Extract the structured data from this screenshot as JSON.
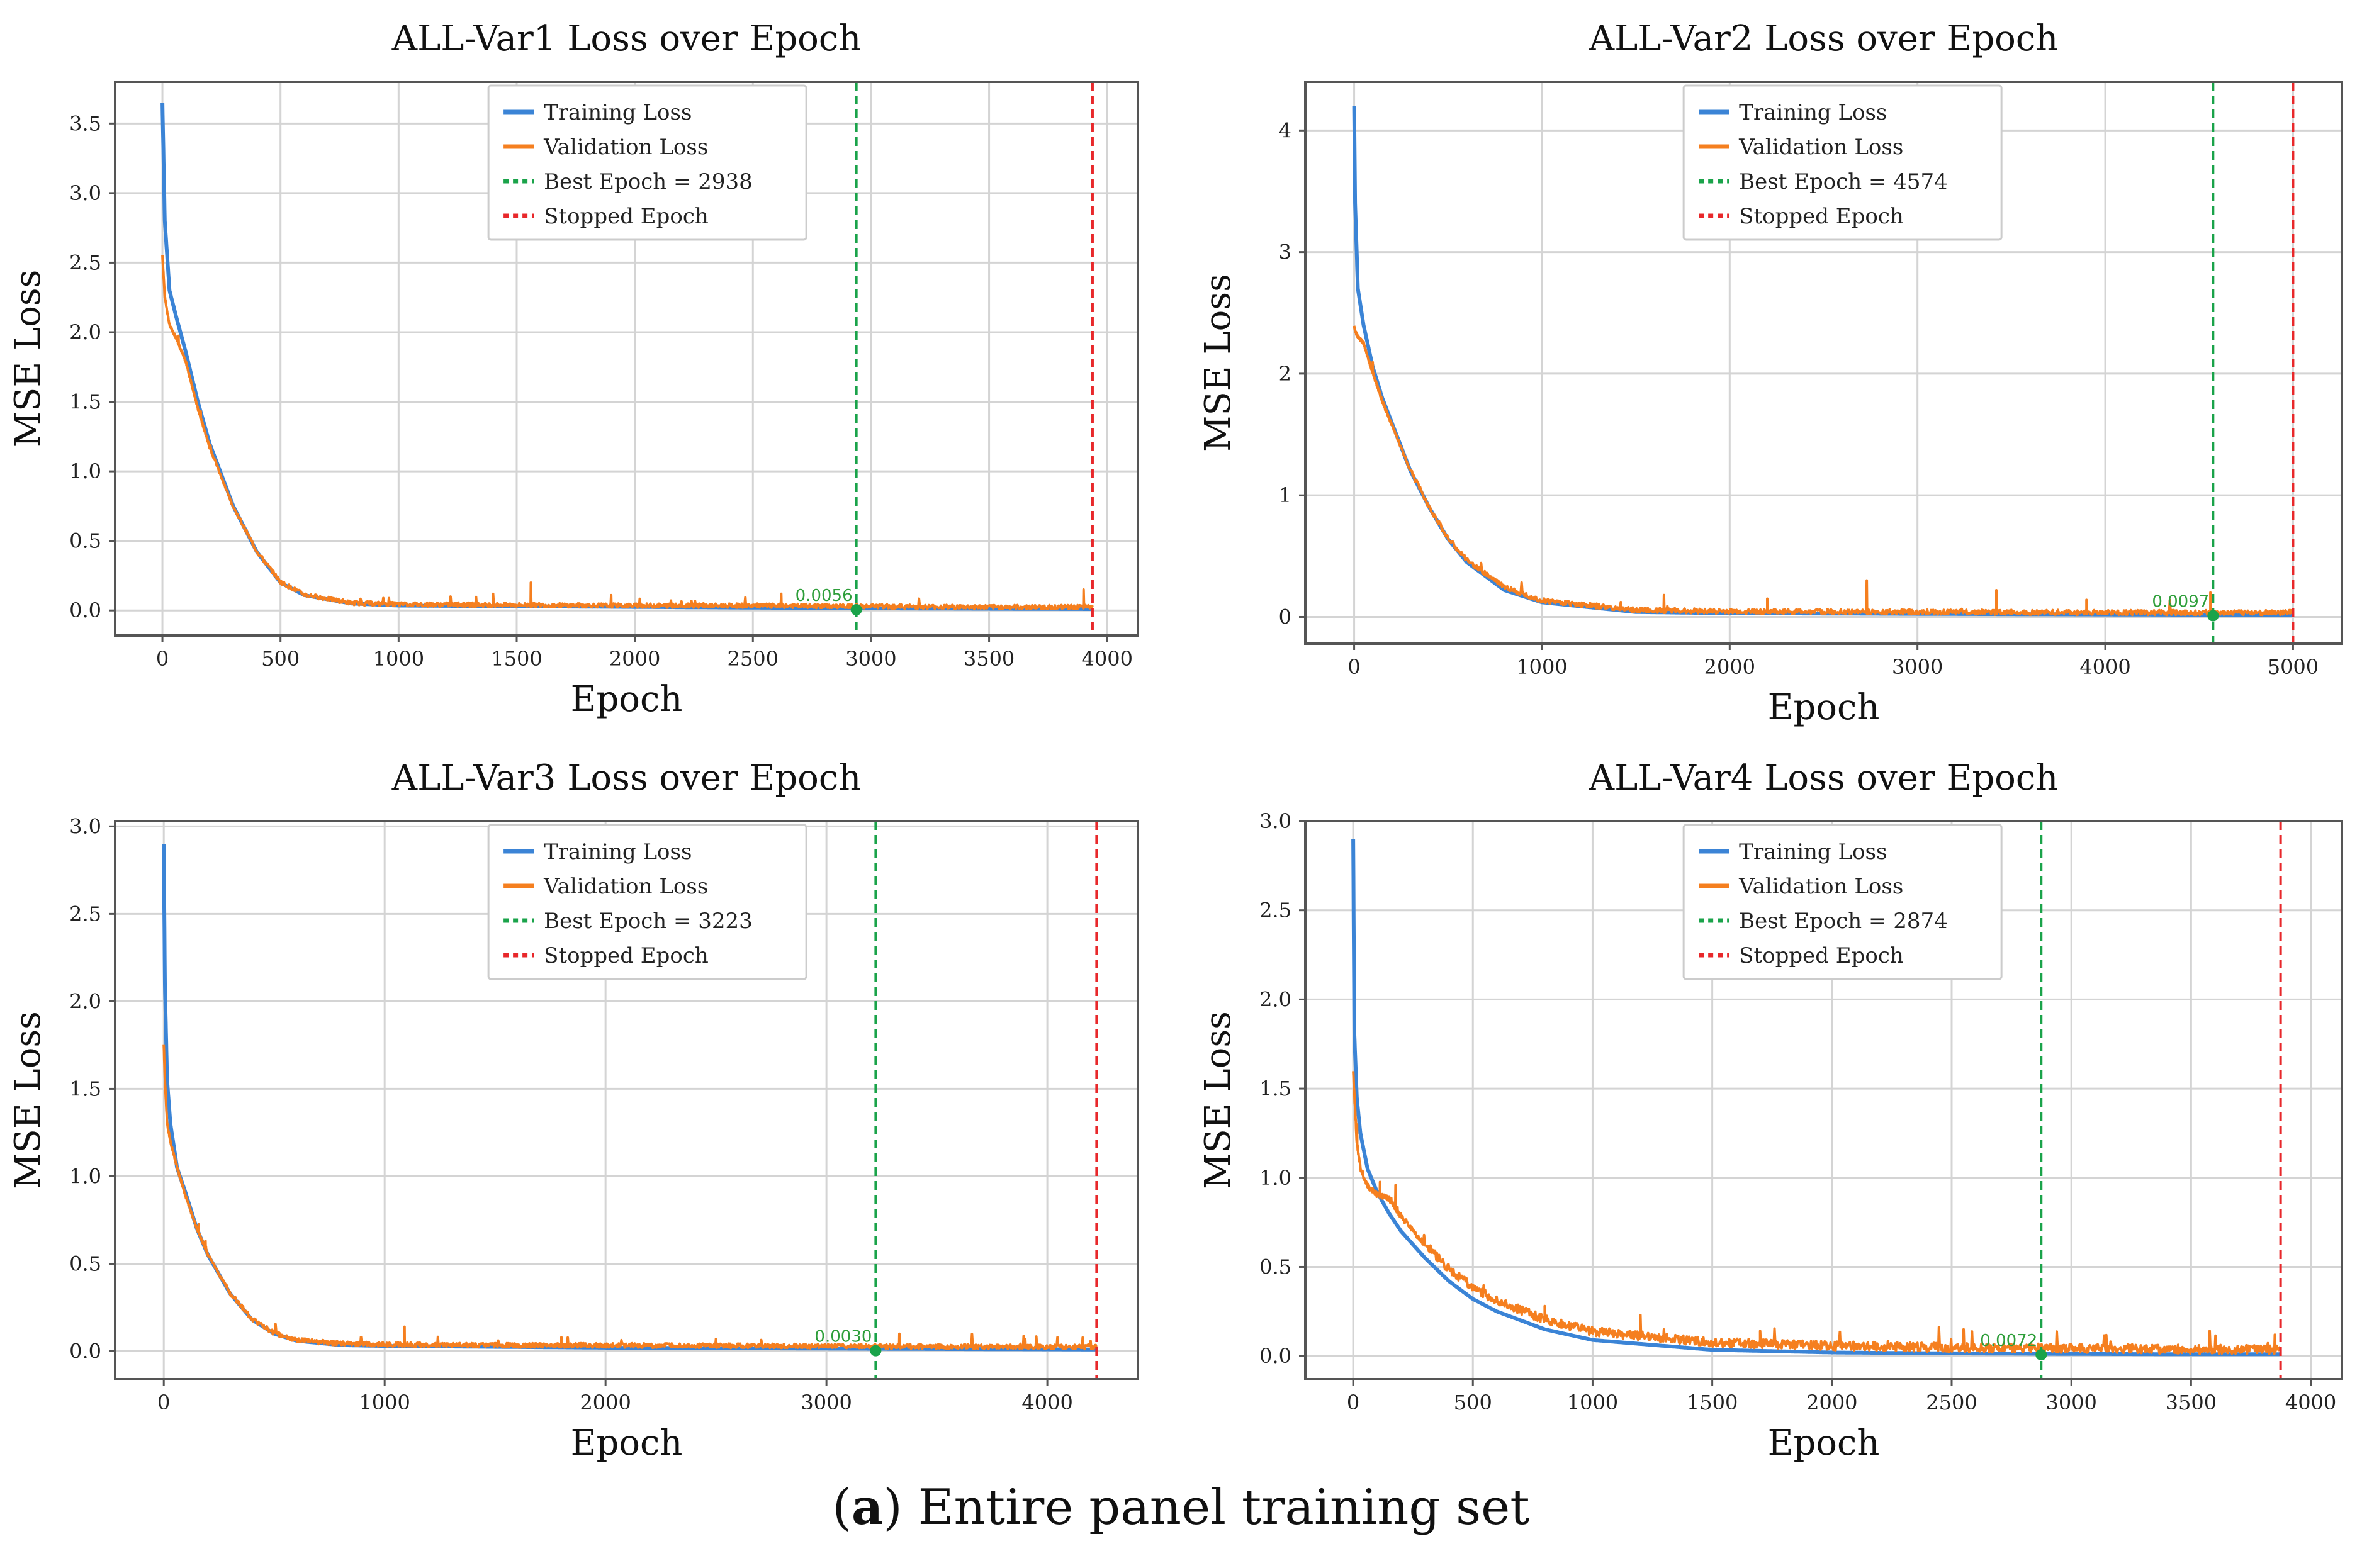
{
  "caption": {
    "label": "a",
    "text": "Entire panel training set"
  },
  "colors": {
    "training": "#3b84d6",
    "validation": "#f57f1f",
    "best": "#1aa34a",
    "stopped": "#e8282b",
    "annotation": "#2e9e3a",
    "grid": "#d4d4d4",
    "frame": "#555555"
  },
  "chart_data": [
    {
      "type": "line",
      "title": "ALL-Var1 Loss over Epoch",
      "xlabel": "Epoch",
      "ylabel": "MSE Loss",
      "xlim": [
        -200,
        4130
      ],
      "ylim": [
        -0.18,
        3.8
      ],
      "xticks": [
        0,
        500,
        1000,
        1500,
        2000,
        2500,
        3000,
        3500,
        4000
      ],
      "xtick_labels": [
        "0",
        "500",
        "1000",
        "1500",
        "2000",
        "2500",
        "3000",
        "3500",
        "4000"
      ],
      "yticks": [
        0.0,
        0.5,
        1.0,
        1.5,
        2.0,
        2.5,
        3.0,
        3.5
      ],
      "ytick_labels": [
        "0.0",
        "0.5",
        "1.0",
        "1.5",
        "2.0",
        "2.5",
        "3.0",
        "3.5"
      ],
      "grid": true,
      "legend_position": "top-center",
      "legend": [
        "Training Loss",
        "Validation Loss",
        "Best Epoch = 2938",
        "Stopped Epoch"
      ],
      "best_epoch": 2938,
      "stopped_epoch": 3938,
      "best_loss_label": "0.0056",
      "best_loss_value": 0.0056,
      "series": [
        {
          "name": "Training Loss",
          "x": [
            0,
            10,
            30,
            60,
            100,
            150,
            200,
            300,
            400,
            500,
            600,
            800,
            1000,
            1500,
            2000,
            2500,
            3000,
            3500,
            3938
          ],
          "y": [
            3.65,
            2.8,
            2.3,
            2.1,
            1.85,
            1.5,
            1.2,
            0.75,
            0.42,
            0.2,
            0.11,
            0.05,
            0.035,
            0.03,
            0.025,
            0.02,
            0.015,
            0.012,
            0.01
          ]
        },
        {
          "name": "Validation Loss",
          "x": [
            0,
            10,
            30,
            60,
            100,
            150,
            200,
            300,
            400,
            500,
            600,
            800,
            1000,
            1500,
            2000,
            2500,
            3000,
            3500,
            3938
          ],
          "y": [
            2.55,
            2.25,
            2.05,
            1.95,
            1.78,
            1.45,
            1.17,
            0.74,
            0.42,
            0.2,
            0.11,
            0.05,
            0.04,
            0.035,
            0.03,
            0.03,
            0.025,
            0.02,
            0.02
          ],
          "noise": 0.03,
          "spikes": [
            [
              1560,
              0.2
            ],
            [
              1400,
              0.12
            ],
            [
              2620,
              0.12
            ],
            [
              3900,
              0.15
            ],
            [
              1900,
              0.11
            ],
            [
              1220,
              0.1
            ]
          ]
        }
      ]
    },
    {
      "type": "line",
      "title": "ALL-Var2 Loss over Epoch",
      "xlabel": "Epoch",
      "ylabel": "MSE Loss",
      "xlim": [
        -260,
        5260
      ],
      "ylim": [
        -0.22,
        4.4
      ],
      "xticks": [
        0,
        1000,
        2000,
        3000,
        4000,
        5000
      ],
      "xtick_labels": [
        "0",
        "1000",
        "2000",
        "3000",
        "4000",
        "5000"
      ],
      "yticks": [
        0,
        1,
        2,
        3,
        4
      ],
      "ytick_labels": [
        "0",
        "1",
        "2",
        "3",
        "4"
      ],
      "grid": true,
      "legend_position": "top-center",
      "legend": [
        "Training Loss",
        "Validation Loss",
        "Best Epoch = 4574",
        "Stopped Epoch"
      ],
      "best_epoch": 4574,
      "stopped_epoch": 5000,
      "best_loss_label": "0.0097",
      "best_loss_value": 0.0097,
      "series": [
        {
          "name": "Training Loss",
          "x": [
            0,
            5,
            20,
            50,
            100,
            150,
            200,
            300,
            400,
            500,
            600,
            800,
            1000,
            1500,
            2000,
            3000,
            4000,
            5000
          ],
          "y": [
            4.2,
            3.4,
            2.7,
            2.4,
            2.05,
            1.8,
            1.6,
            1.2,
            0.9,
            0.64,
            0.45,
            0.22,
            0.12,
            0.04,
            0.03,
            0.025,
            0.02,
            0.015
          ]
        },
        {
          "name": "Validation Loss",
          "x": [
            0,
            5,
            20,
            50,
            100,
            150,
            200,
            300,
            400,
            500,
            600,
            800,
            1000,
            1500,
            2000,
            3000,
            4000,
            5000
          ],
          "y": [
            2.4,
            2.35,
            2.3,
            2.25,
            2.0,
            1.77,
            1.58,
            1.2,
            0.9,
            0.64,
            0.46,
            0.24,
            0.13,
            0.05,
            0.04,
            0.035,
            0.03,
            0.03
          ],
          "noise": 0.04,
          "spikes": [
            [
              2730,
              0.3
            ],
            [
              3420,
              0.22
            ],
            [
              1650,
              0.18
            ],
            [
              4560,
              0.2
            ],
            [
              2200,
              0.15
            ],
            [
              3900,
              0.14
            ]
          ]
        }
      ]
    },
    {
      "type": "line",
      "title": "ALL-Var3 Loss over Epoch",
      "xlabel": "Epoch",
      "ylabel": "MSE Loss",
      "xlim": [
        -220,
        4410
      ],
      "ylim": [
        -0.16,
        3.03
      ],
      "xticks": [
        0,
        1000,
        2000,
        3000,
        4000
      ],
      "xtick_labels": [
        "0",
        "1000",
        "2000",
        "3000",
        "4000"
      ],
      "yticks": [
        0.0,
        0.5,
        1.0,
        1.5,
        2.0,
        2.5,
        3.0
      ],
      "ytick_labels": [
        "0.0",
        "0.5",
        "1.0",
        "1.5",
        "2.0",
        "2.5",
        "3.0"
      ],
      "grid": true,
      "legend_position": "top-center",
      "legend": [
        "Training Loss",
        "Validation Loss",
        "Best Epoch = 3223",
        "Stopped Epoch"
      ],
      "best_epoch": 3223,
      "stopped_epoch": 4223,
      "best_loss_label": "0.0030",
      "best_loss_value": 0.003,
      "series": [
        {
          "name": "Training Loss",
          "x": [
            0,
            5,
            15,
            30,
            60,
            100,
            150,
            200,
            300,
            400,
            500,
            600,
            800,
            1000,
            1500,
            2000,
            3000,
            4223
          ],
          "y": [
            2.9,
            2.1,
            1.55,
            1.3,
            1.05,
            0.9,
            0.7,
            0.55,
            0.33,
            0.18,
            0.1,
            0.06,
            0.035,
            0.03,
            0.025,
            0.02,
            0.015,
            0.01
          ]
        },
        {
          "name": "Validation Loss",
          "x": [
            0,
            5,
            15,
            30,
            60,
            100,
            150,
            200,
            300,
            400,
            500,
            600,
            800,
            1000,
            1500,
            2000,
            3000,
            4223
          ],
          "y": [
            1.75,
            1.55,
            1.3,
            1.2,
            1.05,
            0.88,
            0.7,
            0.55,
            0.33,
            0.18,
            0.1,
            0.06,
            0.04,
            0.035,
            0.03,
            0.03,
            0.025,
            0.02
          ],
          "noise": 0.025,
          "spikes": [
            [
              1090,
              0.14
            ],
            [
              3330,
              0.1
            ],
            [
              1800,
              0.08
            ],
            [
              2500,
              0.07
            ],
            [
              3900,
              0.07
            ]
          ]
        }
      ]
    },
    {
      "type": "line",
      "title": "ALL-Var4 Loss over Epoch",
      "xlabel": "Epoch",
      "ylabel": "MSE Loss",
      "xlim": [
        -200,
        4130
      ],
      "ylim": [
        -0.13,
        3.0
      ],
      "xticks": [
        0,
        500,
        1000,
        1500,
        2000,
        2500,
        3000,
        3500,
        4000
      ],
      "xtick_labels": [
        "0",
        "500",
        "1000",
        "1500",
        "2000",
        "2500",
        "3000",
        "3500",
        "4000"
      ],
      "yticks": [
        0.0,
        0.5,
        1.0,
        1.5,
        2.0,
        2.5,
        3.0
      ],
      "ytick_labels": [
        "0.0",
        "0.5",
        "1.0",
        "1.5",
        "2.0",
        "2.5",
        "3.0"
      ],
      "grid": true,
      "legend_position": "top-center",
      "legend": [
        "Training Loss",
        "Validation Loss",
        "Best Epoch = 2874",
        "Stopped Epoch"
      ],
      "best_epoch": 2874,
      "stopped_epoch": 3874,
      "best_loss_label": "0.0072",
      "best_loss_value": 0.0072,
      "series": [
        {
          "name": "Training Loss",
          "x": [
            0,
            5,
            15,
            30,
            60,
            100,
            150,
            200,
            300,
            400,
            500,
            600,
            800,
            1000,
            1500,
            2000,
            2500,
            3000,
            3500,
            3874
          ],
          "y": [
            2.9,
            1.8,
            1.45,
            1.25,
            1.05,
            0.92,
            0.8,
            0.7,
            0.55,
            0.42,
            0.32,
            0.25,
            0.15,
            0.09,
            0.035,
            0.02,
            0.015,
            0.012,
            0.01,
            0.01
          ]
        },
        {
          "name": "Validation Loss",
          "x": [
            0,
            5,
            15,
            30,
            60,
            100,
            150,
            200,
            300,
            400,
            500,
            600,
            800,
            1000,
            1500,
            2000,
            2500,
            3000,
            3500,
            3874
          ],
          "y": [
            1.6,
            1.45,
            1.2,
            1.05,
            0.95,
            0.9,
            0.88,
            0.78,
            0.62,
            0.48,
            0.38,
            0.3,
            0.2,
            0.13,
            0.07,
            0.05,
            0.04,
            0.035,
            0.03,
            0.03
          ],
          "noise": 0.05,
          "spikes": [
            [
              800,
              0.28
            ],
            [
              1200,
              0.23
            ],
            [
              2550,
              0.15
            ],
            [
              3850,
              0.12
            ],
            [
              1700,
              0.14
            ]
          ]
        }
      ]
    }
  ]
}
